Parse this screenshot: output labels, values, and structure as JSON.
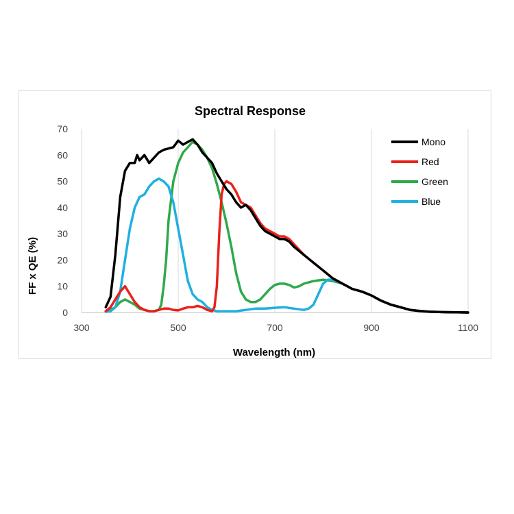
{
  "chart_data": {
    "type": "line",
    "title": "Spectral Response",
    "xlabel": "Wavelength (nm)",
    "ylabel": "FF x QE (%)",
    "xlim": [
      300,
      1100
    ],
    "ylim": [
      0,
      70
    ],
    "xticks": [
      300,
      500,
      700,
      900,
      1100
    ],
    "yticks": [
      0,
      10,
      20,
      30,
      40,
      50,
      60,
      70
    ],
    "grid": "vertical",
    "legend_position": "top-right",
    "series": [
      {
        "name": "Mono",
        "color": "#000000",
        "x": [
          350,
          360,
          370,
          380,
          390,
          400,
          410,
          415,
          420,
          430,
          440,
          450,
          460,
          470,
          480,
          490,
          500,
          510,
          520,
          530,
          540,
          550,
          560,
          570,
          580,
          590,
          600,
          610,
          620,
          630,
          640,
          650,
          660,
          670,
          680,
          690,
          700,
          710,
          720,
          730,
          740,
          760,
          780,
          800,
          820,
          840,
          860,
          880,
          900,
          920,
          940,
          960,
          980,
          1000,
          1020,
          1040,
          1060,
          1080,
          1100
        ],
        "y": [
          2,
          6,
          22,
          44,
          54,
          57,
          57,
          60,
          58,
          60,
          57,
          59,
          61,
          62,
          62.5,
          63,
          65.5,
          64,
          65,
          66,
          64,
          61,
          59,
          57,
          53,
          50,
          47,
          45,
          42,
          40,
          41,
          39,
          36,
          33,
          31,
          30,
          29,
          28,
          28,
          27,
          25,
          22,
          19,
          16,
          13,
          11,
          9,
          8,
          6.5,
          4.5,
          3,
          2,
          1,
          0.6,
          0.3,
          0.2,
          0.1,
          0.05,
          0
        ]
      },
      {
        "name": "Red",
        "color": "#e8221b",
        "x": [
          350,
          360,
          370,
          380,
          390,
          400,
          410,
          420,
          430,
          440,
          450,
          460,
          470,
          480,
          490,
          500,
          510,
          520,
          530,
          540,
          550,
          560,
          570,
          575,
          580,
          585,
          590,
          595,
          600,
          610,
          620,
          630,
          640,
          650,
          660,
          670,
          680,
          690,
          700,
          710,
          720,
          730,
          740,
          760,
          780,
          800,
          820,
          840,
          860,
          880,
          900,
          920,
          940,
          960,
          980,
          1000,
          1020,
          1040,
          1060,
          1080,
          1100
        ],
        "y": [
          0.5,
          2,
          5,
          8,
          10,
          7,
          4,
          2,
          1,
          0.5,
          0.5,
          1,
          1.5,
          1.5,
          1,
          0.8,
          1.5,
          2,
          2,
          2.5,
          2,
          1,
          0.5,
          2,
          10,
          30,
          45,
          49,
          50,
          49,
          46,
          42,
          41,
          40,
          37,
          34,
          32,
          31,
          30,
          29,
          29,
          28,
          26,
          22,
          19,
          16,
          13,
          11,
          9,
          8,
          6.5,
          4.5,
          3,
          2,
          1,
          0.6,
          0.3,
          0.2,
          0.1,
          0.05,
          0
        ]
      },
      {
        "name": "Green",
        "color": "#2eaa4a",
        "x": [
          350,
          360,
          370,
          380,
          390,
          400,
          410,
          420,
          430,
          440,
          450,
          460,
          465,
          470,
          475,
          480,
          490,
          500,
          510,
          520,
          530,
          540,
          550,
          560,
          570,
          580,
          590,
          600,
          610,
          620,
          630,
          640,
          650,
          660,
          670,
          680,
          690,
          700,
          710,
          720,
          730,
          740,
          750,
          760,
          780,
          800,
          820,
          840,
          860,
          880,
          900,
          920,
          940,
          960,
          980,
          1000,
          1020,
          1040,
          1060,
          1080,
          1100
        ],
        "y": [
          0.5,
          1,
          2,
          4,
          5,
          4,
          3,
          1.5,
          1,
          0.5,
          0.5,
          1,
          3,
          10,
          20,
          35,
          50,
          57,
          61,
          63,
          65,
          64,
          62,
          59,
          55,
          49,
          42,
          34,
          25,
          15,
          8,
          5,
          4,
          4,
          5,
          7,
          9,
          10.5,
          11,
          11,
          10.5,
          9.5,
          10,
          11,
          12,
          12.5,
          12,
          11,
          9,
          8,
          6.5,
          4.5,
          3,
          2,
          1,
          0.6,
          0.3,
          0.2,
          0.1,
          0.05,
          0
        ]
      },
      {
        "name": "Blue",
        "color": "#1fb0e0",
        "x": [
          350,
          360,
          370,
          380,
          390,
          400,
          410,
          420,
          430,
          440,
          450,
          460,
          470,
          480,
          490,
          500,
          510,
          520,
          530,
          540,
          550,
          560,
          570,
          580,
          600,
          620,
          640,
          660,
          680,
          700,
          720,
          740,
          760,
          770,
          780,
          790,
          800,
          810,
          820,
          840,
          860,
          880,
          900,
          920,
          940,
          960,
          980,
          1000,
          1020,
          1040,
          1060,
          1080,
          1100
        ],
        "y": [
          0.3,
          0.5,
          2,
          8,
          20,
          32,
          40,
          44,
          45,
          48,
          50,
          51,
          50,
          48,
          42,
          32,
          22,
          12,
          7,
          5,
          4,
          2,
          1,
          0.5,
          0.5,
          0.5,
          1,
          1.5,
          1.5,
          1.8,
          2,
          1.5,
          1,
          1.5,
          3,
          7,
          11,
          12.5,
          12.5,
          11,
          9,
          8,
          6.5,
          4.5,
          3,
          2,
          1,
          0.6,
          0.3,
          0.2,
          0.1,
          0.05,
          0
        ]
      }
    ]
  }
}
